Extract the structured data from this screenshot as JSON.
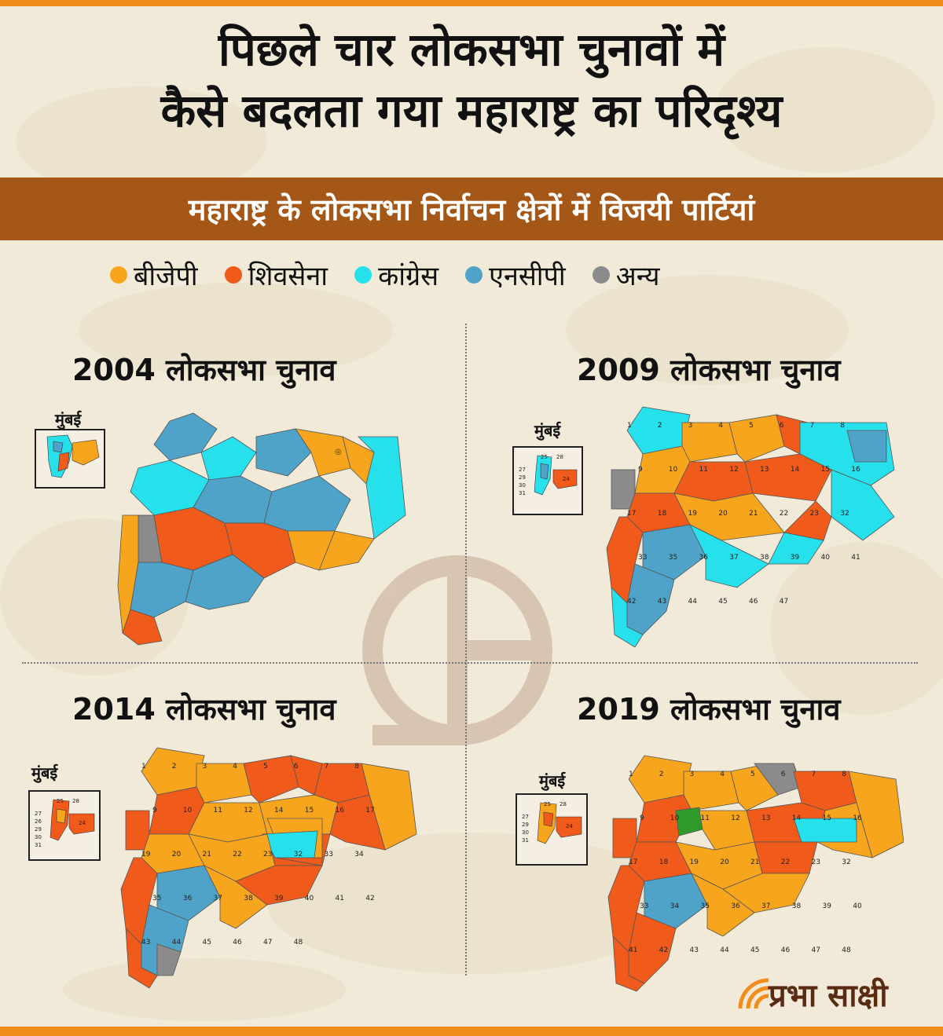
{
  "title": {
    "line1": "पिछले चार लोकसभा चुनावों में",
    "line2": "कैसे बदलता गया महाराष्ट्र का परिदृश्य"
  },
  "subtitle": "महाराष्ट्र के लोकसभा निर्वाचन क्षेत्रों में विजयी पार्टियां",
  "legend": [
    {
      "label": "बीजेपी",
      "color": "#f7a51c"
    },
    {
      "label": "शिवसेना",
      "color": "#f05a1a"
    },
    {
      "label": "कांग्रेस",
      "color": "#26e0ec"
    },
    {
      "label": "एनसीपी",
      "color": "#4fa3c8"
    },
    {
      "label": "अन्य",
      "color": "#8b8b8b"
    }
  ],
  "colors": {
    "bjp": "#f7a51c",
    "shivsena": "#f05a1a",
    "congress": "#26e0ec",
    "ncp": "#4fa3c8",
    "other": "#8b8b8b",
    "green": "#2f9a2a",
    "accent": "#f28c1c",
    "band": "#a45716"
  },
  "maps": [
    {
      "year_title": "2004 लोकसभा चुनाव",
      "inset_label": "मुंबई",
      "dominant": "mixed"
    },
    {
      "year_title": "2009 लोकसभा चुनाव",
      "inset_label": "मुंबई",
      "dominant": "mixed",
      "numbers": [
        "1",
        "2",
        "3",
        "4",
        "5",
        "6",
        "7",
        "8",
        "9",
        "10",
        "11",
        "12",
        "13",
        "14",
        "15",
        "16",
        "17",
        "18",
        "19",
        "20",
        "21",
        "22",
        "23",
        "32",
        "33",
        "35",
        "36",
        "37",
        "38",
        "39",
        "40",
        "41",
        "42",
        "43",
        "44",
        "45",
        "46",
        "47"
      ],
      "inset_numbers": [
        "25",
        "28",
        "27",
        "29",
        "30",
        "31",
        "24"
      ]
    },
    {
      "year_title": "2014 लोकसभा चुनाव",
      "inset_label": "मुंबई",
      "dominant": "bjp-shivsena",
      "numbers": [
        "1",
        "2",
        "3",
        "4",
        "5",
        "6",
        "7",
        "8",
        "9",
        "10",
        "11",
        "12",
        "14",
        "15",
        "16",
        "17",
        "19",
        "20",
        "21",
        "22",
        "23",
        "32",
        "33",
        "34",
        "35",
        "36",
        "37",
        "38",
        "39",
        "40",
        "41",
        "42",
        "43",
        "44",
        "45",
        "46",
        "47",
        "48"
      ],
      "inset_numbers": [
        "25",
        "28",
        "27",
        "26",
        "29",
        "30",
        "31",
        "24"
      ]
    },
    {
      "year_title": "2019 लोकसभा चुनाव",
      "inset_label": "मुंबई",
      "dominant": "bjp-shivsena",
      "numbers": [
        "1",
        "2",
        "3",
        "4",
        "5",
        "6",
        "7",
        "8",
        "9",
        "10",
        "11",
        "12",
        "13",
        "14",
        "15",
        "16",
        "17",
        "18",
        "19",
        "20",
        "21",
        "22",
        "23",
        "32",
        "33",
        "34",
        "35",
        "36",
        "37",
        "38",
        "39",
        "40",
        "41",
        "42",
        "43",
        "44",
        "45",
        "46",
        "47",
        "48"
      ],
      "inset_numbers": [
        "25",
        "28",
        "27",
        "29",
        "30",
        "31",
        "24"
      ]
    }
  ],
  "logo_text": "प्रभा साक्षी"
}
